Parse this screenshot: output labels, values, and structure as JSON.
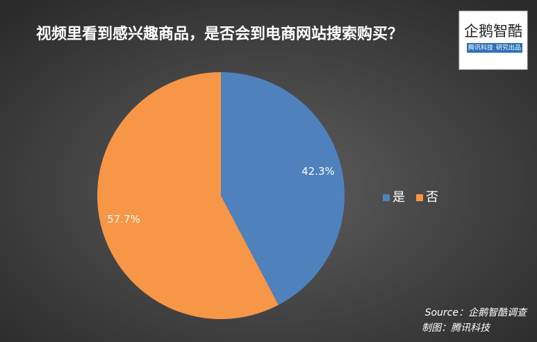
{
  "chart_data": {
    "type": "pie",
    "title": "视频里看到感兴趣商品，是否会到电商网站搜索购买？",
    "categories": [
      "是",
      "否"
    ],
    "values": [
      42.3,
      57.7
    ],
    "value_labels": [
      "42.3%",
      "57.7%"
    ],
    "colors": [
      "#4f81bd",
      "#f79646"
    ],
    "legend": "right"
  },
  "logo": {
    "name": "企鹅智酷",
    "tags": [
      "腾讯科技",
      "研究出品"
    ]
  },
  "source": "Source：企鹅智酷调查",
  "credit": "制图：腾讯科技"
}
